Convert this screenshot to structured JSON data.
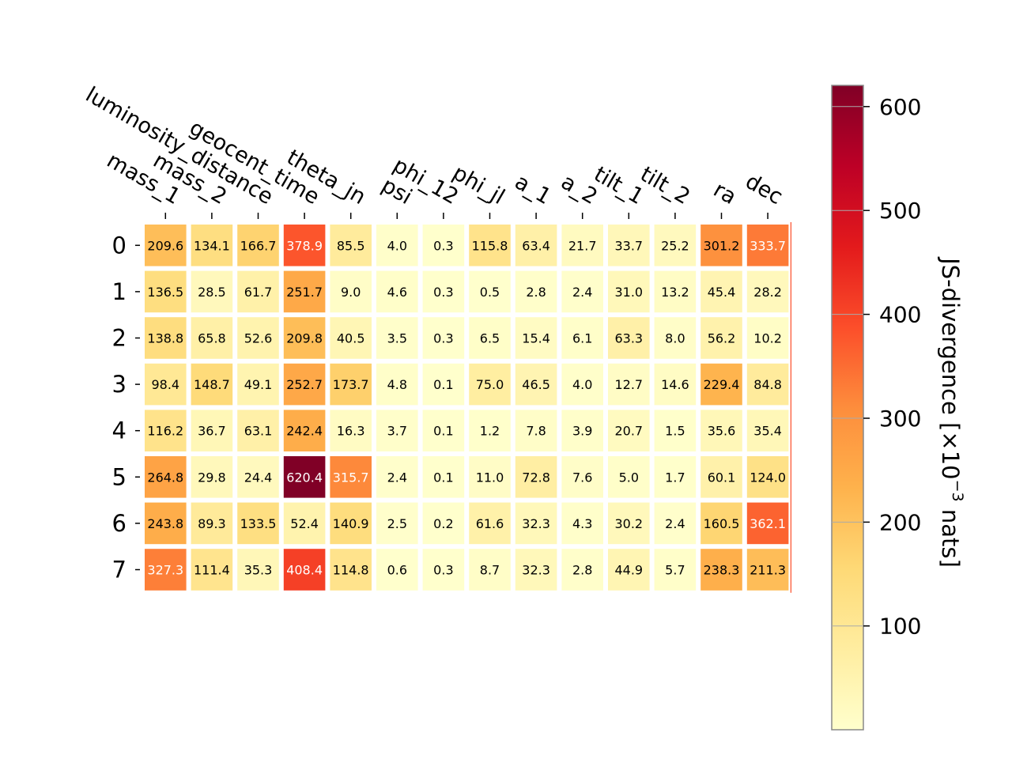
{
  "chart_data": {
    "type": "heatmap",
    "title": "",
    "columns": [
      "mass_1",
      "mass_2",
      "luminosity_distance",
      "geocent_time",
      "theta_jn",
      "psi",
      "phi_12",
      "phi_jl",
      "a_1",
      "a_2",
      "tilt_1",
      "tilt_2",
      "ra",
      "dec"
    ],
    "rows": [
      "0",
      "1",
      "2",
      "3",
      "4",
      "5",
      "6",
      "7"
    ],
    "values": [
      [
        209.6,
        134.1,
        166.7,
        378.9,
        85.5,
        4.0,
        0.3,
        115.8,
        63.4,
        21.7,
        33.7,
        25.2,
        301.2,
        333.7
      ],
      [
        136.5,
        28.5,
        61.7,
        251.7,
        9.0,
        4.6,
        0.3,
        0.5,
        2.8,
        2.4,
        31.0,
        13.2,
        45.4,
        28.2
      ],
      [
        138.8,
        65.8,
        52.6,
        209.8,
        40.5,
        3.5,
        0.3,
        6.5,
        15.4,
        6.1,
        63.3,
        8.0,
        56.2,
        10.2
      ],
      [
        98.4,
        148.7,
        49.1,
        252.7,
        173.7,
        4.8,
        0.1,
        75.0,
        46.5,
        4.0,
        12.7,
        14.6,
        229.4,
        84.8
      ],
      [
        116.2,
        36.7,
        63.1,
        242.4,
        16.3,
        3.7,
        0.1,
        1.2,
        7.8,
        3.9,
        20.7,
        1.5,
        35.6,
        35.4
      ],
      [
        264.8,
        29.8,
        24.4,
        620.4,
        315.7,
        2.4,
        0.1,
        11.0,
        72.8,
        7.6,
        5.0,
        1.7,
        60.1,
        124.0
      ],
      [
        243.8,
        89.3,
        133.5,
        52.4,
        140.9,
        2.5,
        0.2,
        61.6,
        32.3,
        4.3,
        30.2,
        2.4,
        160.5,
        362.1
      ],
      [
        327.3,
        111.4,
        35.3,
        408.4,
        114.8,
        0.6,
        0.3,
        8.7,
        32.3,
        2.8,
        44.9,
        5.7,
        238.3,
        211.3
      ]
    ],
    "colorbar": {
      "label": "JS-divergence [×10",
      "label_exponent": "−3",
      "label_suffix": " nats]",
      "range": [
        0.1,
        620.4
      ],
      "ticks": [
        "100",
        "200",
        "300",
        "400",
        "500",
        "600"
      ],
      "tick_values": [
        100,
        200,
        300,
        400,
        500,
        600
      ],
      "colormap": "YlOrRd"
    },
    "grid": false,
    "legend": "colorbar-right"
  }
}
